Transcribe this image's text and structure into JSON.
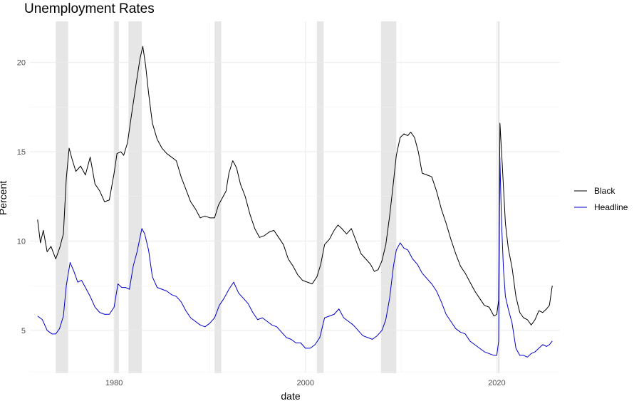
{
  "chart_data": {
    "type": "line",
    "title": "Unemployment Rates",
    "xlabel": "date",
    "ylabel": "Percent",
    "xlim": [
      1971.2,
      2026.6
    ],
    "ylim": [
      2.6,
      22.3
    ],
    "x_ticks": [
      1980,
      2000,
      2020
    ],
    "y_ticks": [
      5,
      10,
      15,
      20
    ],
    "grid": true,
    "legend_position": "right",
    "recessions": [
      [
        1973.9,
        1975.2
      ],
      [
        1980.0,
        1980.5
      ],
      [
        1981.5,
        1982.9
      ],
      [
        1990.5,
        1991.2
      ],
      [
        2001.2,
        2001.9
      ],
      [
        2007.9,
        2009.5
      ],
      [
        2020.1,
        2020.3
      ]
    ],
    "series": [
      {
        "name": "Black",
        "color": "#000000",
        "points": [
          [
            1972.0,
            11.2
          ],
          [
            1972.3,
            9.9
          ],
          [
            1972.6,
            10.6
          ],
          [
            1973.0,
            9.4
          ],
          [
            1973.4,
            9.7
          ],
          [
            1973.9,
            9.0
          ],
          [
            1974.3,
            9.6
          ],
          [
            1974.7,
            10.4
          ],
          [
            1975.0,
            13.5
          ],
          [
            1975.3,
            15.2
          ],
          [
            1975.6,
            14.6
          ],
          [
            1976.0,
            13.9
          ],
          [
            1976.5,
            14.2
          ],
          [
            1977.0,
            13.7
          ],
          [
            1977.5,
            14.7
          ],
          [
            1978.0,
            13.2
          ],
          [
            1978.5,
            12.8
          ],
          [
            1979.0,
            12.2
          ],
          [
            1979.5,
            12.3
          ],
          [
            1980.0,
            13.8
          ],
          [
            1980.3,
            14.9
          ],
          [
            1980.7,
            15.0
          ],
          [
            1981.0,
            14.8
          ],
          [
            1981.4,
            15.5
          ],
          [
            1981.8,
            17.0
          ],
          [
            1982.3,
            18.8
          ],
          [
            1982.7,
            20.2
          ],
          [
            1983.0,
            20.9
          ],
          [
            1983.3,
            19.8
          ],
          [
            1983.6,
            18.3
          ],
          [
            1984.0,
            16.6
          ],
          [
            1984.5,
            15.7
          ],
          [
            1985.0,
            15.2
          ],
          [
            1985.5,
            14.9
          ],
          [
            1986.0,
            14.7
          ],
          [
            1986.5,
            14.5
          ],
          [
            1987.0,
            13.6
          ],
          [
            1987.5,
            12.9
          ],
          [
            1988.0,
            12.2
          ],
          [
            1988.5,
            11.8
          ],
          [
            1989.0,
            11.3
          ],
          [
            1989.5,
            11.4
          ],
          [
            1990.0,
            11.3
          ],
          [
            1990.5,
            11.3
          ],
          [
            1990.9,
            12.0
          ],
          [
            1991.3,
            12.4
          ],
          [
            1991.7,
            12.8
          ],
          [
            1992.0,
            13.8
          ],
          [
            1992.4,
            14.5
          ],
          [
            1992.8,
            14.1
          ],
          [
            1993.2,
            13.2
          ],
          [
            1993.7,
            12.5
          ],
          [
            1994.2,
            11.5
          ],
          [
            1994.7,
            10.7
          ],
          [
            1995.2,
            10.2
          ],
          [
            1995.7,
            10.3
          ],
          [
            1996.2,
            10.5
          ],
          [
            1996.7,
            10.6
          ],
          [
            1997.2,
            10.2
          ],
          [
            1997.7,
            9.8
          ],
          [
            1998.2,
            9.0
          ],
          [
            1998.7,
            8.6
          ],
          [
            1999.2,
            8.1
          ],
          [
            1999.7,
            7.8
          ],
          [
            2000.2,
            7.7
          ],
          [
            2000.7,
            7.6
          ],
          [
            2001.2,
            8.0
          ],
          [
            2001.6,
            8.7
          ],
          [
            2002.0,
            9.8
          ],
          [
            2002.5,
            10.1
          ],
          [
            2003.0,
            10.6
          ],
          [
            2003.4,
            10.9
          ],
          [
            2003.8,
            10.7
          ],
          [
            2004.3,
            10.4
          ],
          [
            2004.8,
            10.7
          ],
          [
            2005.3,
            10.0
          ],
          [
            2005.8,
            9.3
          ],
          [
            2006.3,
            9.0
          ],
          [
            2006.8,
            8.7
          ],
          [
            2007.2,
            8.3
          ],
          [
            2007.6,
            8.4
          ],
          [
            2008.0,
            8.9
          ],
          [
            2008.4,
            9.8
          ],
          [
            2008.8,
            11.4
          ],
          [
            2009.2,
            13.3
          ],
          [
            2009.5,
            14.8
          ],
          [
            2009.9,
            15.8
          ],
          [
            2010.3,
            16.0
          ],
          [
            2010.7,
            15.9
          ],
          [
            2011.0,
            16.1
          ],
          [
            2011.4,
            15.8
          ],
          [
            2011.8,
            15.0
          ],
          [
            2012.2,
            13.8
          ],
          [
            2012.7,
            13.7
          ],
          [
            2013.2,
            13.6
          ],
          [
            2013.7,
            12.8
          ],
          [
            2014.2,
            11.8
          ],
          [
            2014.7,
            11.0
          ],
          [
            2015.2,
            10.1
          ],
          [
            2015.7,
            9.3
          ],
          [
            2016.2,
            8.6
          ],
          [
            2016.7,
            8.2
          ],
          [
            2017.2,
            7.7
          ],
          [
            2017.7,
            7.2
          ],
          [
            2018.2,
            6.8
          ],
          [
            2018.7,
            6.4
          ],
          [
            2019.2,
            6.3
          ],
          [
            2019.7,
            5.8
          ],
          [
            2020.0,
            5.9
          ],
          [
            2020.2,
            6.7
          ],
          [
            2020.33,
            16.6
          ],
          [
            2020.5,
            15.0
          ],
          [
            2020.7,
            13.0
          ],
          [
            2020.9,
            11.0
          ],
          [
            2021.2,
            9.6
          ],
          [
            2021.6,
            8.5
          ],
          [
            2022.0,
            6.9
          ],
          [
            2022.4,
            6.0
          ],
          [
            2022.8,
            5.7
          ],
          [
            2023.2,
            5.6
          ],
          [
            2023.6,
            5.3
          ],
          [
            2024.0,
            5.6
          ],
          [
            2024.4,
            6.1
          ],
          [
            2024.8,
            6.0
          ],
          [
            2025.2,
            6.2
          ],
          [
            2025.5,
            6.4
          ],
          [
            2025.8,
            7.5
          ]
        ]
      },
      {
        "name": "Headline",
        "color": "#0000cc",
        "points": [
          [
            1972.0,
            5.8
          ],
          [
            1972.5,
            5.6
          ],
          [
            1973.0,
            5.0
          ],
          [
            1973.5,
            4.8
          ],
          [
            1973.9,
            4.8
          ],
          [
            1974.3,
            5.1
          ],
          [
            1974.7,
            5.8
          ],
          [
            1975.0,
            7.5
          ],
          [
            1975.4,
            8.8
          ],
          [
            1975.8,
            8.3
          ],
          [
            1976.2,
            7.7
          ],
          [
            1976.6,
            7.8
          ],
          [
            1977.0,
            7.4
          ],
          [
            1977.5,
            6.9
          ],
          [
            1978.0,
            6.3
          ],
          [
            1978.5,
            6.0
          ],
          [
            1979.0,
            5.9
          ],
          [
            1979.5,
            5.9
          ],
          [
            1980.0,
            6.3
          ],
          [
            1980.4,
            7.6
          ],
          [
            1980.8,
            7.4
          ],
          [
            1981.2,
            7.4
          ],
          [
            1981.6,
            7.3
          ],
          [
            1982.0,
            8.6
          ],
          [
            1982.4,
            9.4
          ],
          [
            1982.9,
            10.7
          ],
          [
            1983.2,
            10.4
          ],
          [
            1983.6,
            9.5
          ],
          [
            1984.0,
            8.0
          ],
          [
            1984.5,
            7.4
          ],
          [
            1985.0,
            7.3
          ],
          [
            1985.5,
            7.2
          ],
          [
            1986.0,
            7.0
          ],
          [
            1986.5,
            6.9
          ],
          [
            1987.0,
            6.6
          ],
          [
            1987.5,
            6.1
          ],
          [
            1988.0,
            5.7
          ],
          [
            1988.5,
            5.5
          ],
          [
            1989.0,
            5.3
          ],
          [
            1989.5,
            5.2
          ],
          [
            1990.0,
            5.4
          ],
          [
            1990.5,
            5.7
          ],
          [
            1991.0,
            6.4
          ],
          [
            1991.5,
            6.8
          ],
          [
            1992.0,
            7.3
          ],
          [
            1992.5,
            7.7
          ],
          [
            1993.0,
            7.1
          ],
          [
            1993.5,
            6.8
          ],
          [
            1994.0,
            6.5
          ],
          [
            1994.5,
            6.0
          ],
          [
            1995.0,
            5.6
          ],
          [
            1995.5,
            5.7
          ],
          [
            1996.0,
            5.5
          ],
          [
            1996.5,
            5.3
          ],
          [
            1997.0,
            5.2
          ],
          [
            1997.5,
            4.9
          ],
          [
            1998.0,
            4.6
          ],
          [
            1998.5,
            4.5
          ],
          [
            1999.0,
            4.3
          ],
          [
            1999.5,
            4.3
          ],
          [
            2000.0,
            4.0
          ],
          [
            2000.5,
            4.0
          ],
          [
            2001.0,
            4.2
          ],
          [
            2001.5,
            4.6
          ],
          [
            2002.0,
            5.7
          ],
          [
            2002.5,
            5.8
          ],
          [
            2003.0,
            5.9
          ],
          [
            2003.5,
            6.2
          ],
          [
            2004.0,
            5.7
          ],
          [
            2004.5,
            5.5
          ],
          [
            2005.0,
            5.3
          ],
          [
            2005.5,
            5.0
          ],
          [
            2006.0,
            4.7
          ],
          [
            2006.5,
            4.6
          ],
          [
            2007.0,
            4.5
          ],
          [
            2007.5,
            4.7
          ],
          [
            2008.0,
            5.0
          ],
          [
            2008.4,
            5.6
          ],
          [
            2008.8,
            6.8
          ],
          [
            2009.2,
            8.6
          ],
          [
            2009.5,
            9.5
          ],
          [
            2009.9,
            9.9
          ],
          [
            2010.3,
            9.6
          ],
          [
            2010.7,
            9.5
          ],
          [
            2011.2,
            9.0
          ],
          [
            2011.7,
            8.7
          ],
          [
            2012.2,
            8.2
          ],
          [
            2012.7,
            7.9
          ],
          [
            2013.2,
            7.6
          ],
          [
            2013.7,
            7.2
          ],
          [
            2014.2,
            6.6
          ],
          [
            2014.7,
            5.9
          ],
          [
            2015.2,
            5.5
          ],
          [
            2015.7,
            5.1
          ],
          [
            2016.2,
            4.9
          ],
          [
            2016.7,
            4.8
          ],
          [
            2017.2,
            4.4
          ],
          [
            2017.7,
            4.2
          ],
          [
            2018.2,
            4.0
          ],
          [
            2018.7,
            3.8
          ],
          [
            2019.2,
            3.7
          ],
          [
            2019.7,
            3.6
          ],
          [
            2020.0,
            3.6
          ],
          [
            2020.2,
            4.4
          ],
          [
            2020.32,
            14.7
          ],
          [
            2020.5,
            11.0
          ],
          [
            2020.7,
            8.4
          ],
          [
            2020.9,
            6.9
          ],
          [
            2021.2,
            6.2
          ],
          [
            2021.6,
            5.4
          ],
          [
            2022.0,
            4.0
          ],
          [
            2022.4,
            3.6
          ],
          [
            2022.8,
            3.6
          ],
          [
            2023.2,
            3.5
          ],
          [
            2023.6,
            3.7
          ],
          [
            2024.0,
            3.8
          ],
          [
            2024.4,
            4.0
          ],
          [
            2024.8,
            4.2
          ],
          [
            2025.2,
            4.1
          ],
          [
            2025.5,
            4.2
          ],
          [
            2025.8,
            4.4
          ]
        ]
      }
    ]
  }
}
